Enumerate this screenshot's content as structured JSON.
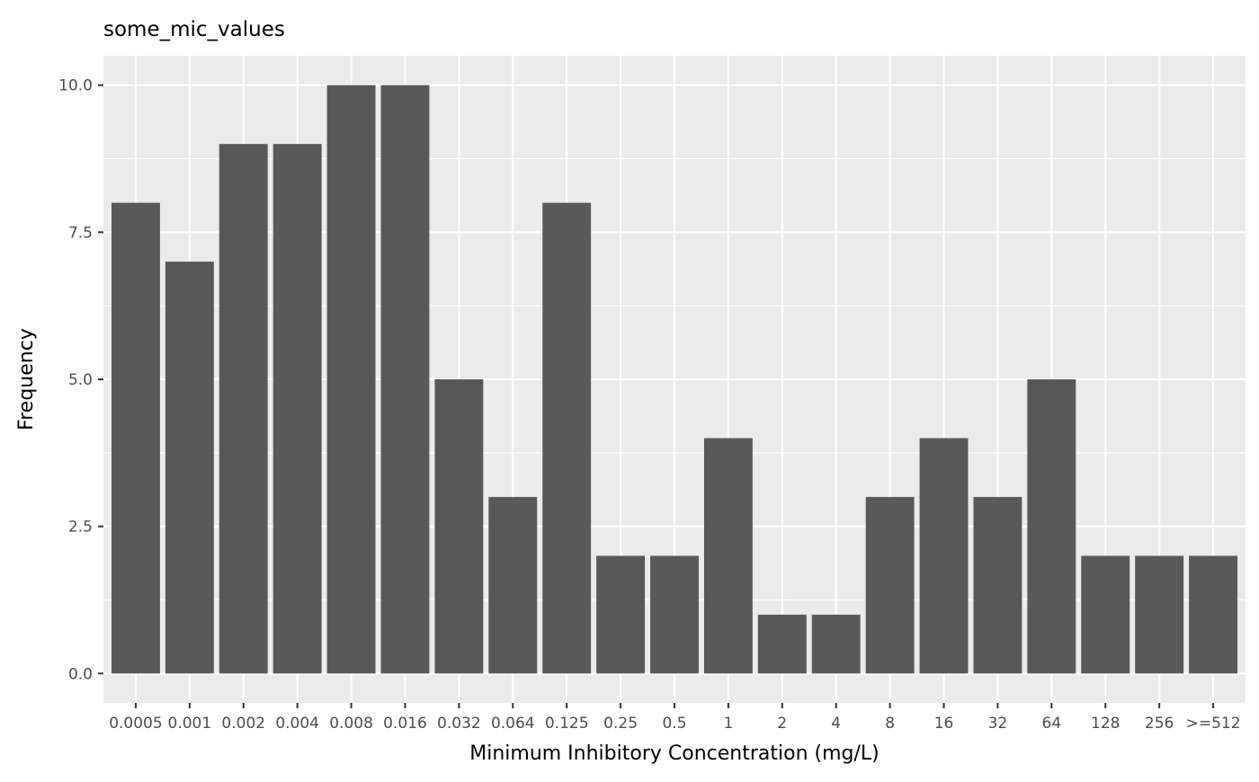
{
  "chart_data": {
    "type": "bar",
    "title": "some_mic_values",
    "xlabel": "Minimum Inhibitory Concentration (mg/L)",
    "ylabel": "Frequency",
    "categories": [
      "0.0005",
      "0.001",
      "0.002",
      "0.004",
      "0.008",
      "0.016",
      "0.032",
      "0.064",
      "0.125",
      "0.25",
      "0.5",
      "1",
      "2",
      "4",
      "8",
      "16",
      "32",
      "64",
      "128",
      "256",
      ">=512"
    ],
    "values": [
      8,
      7,
      9,
      9,
      10,
      10,
      5,
      3,
      8,
      2,
      2,
      4,
      1,
      1,
      3,
      4,
      3,
      5,
      2,
      2,
      2
    ],
    "ylim": [
      -0.5,
      10.5
    ],
    "yticks": [
      "0.0",
      "2.5",
      "5.0",
      "7.5",
      "10.0"
    ],
    "grid": true,
    "colors": {
      "bar": "#595959",
      "panel": "#ebebeb",
      "grid": "#ffffff"
    }
  }
}
